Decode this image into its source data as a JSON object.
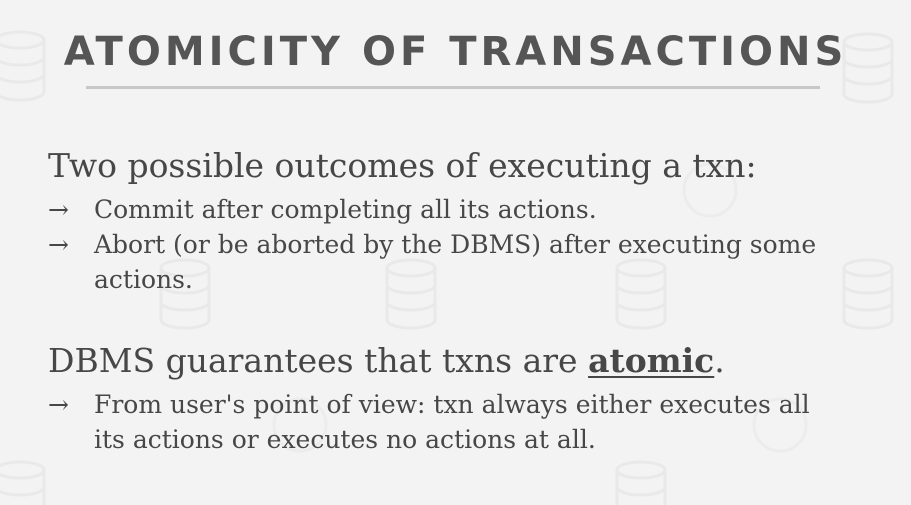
{
  "slide": {
    "title": "ATOMICITY OF TRANSACTIONS",
    "section1": {
      "heading": "Two possible outcomes of executing a txn:",
      "bullets": [
        {
          "arrow": "→",
          "text": "Commit after completing all its actions."
        },
        {
          "arrow": "→",
          "text": "Abort (or be aborted by the DBMS) after executing some actions."
        }
      ]
    },
    "section2": {
      "heading_prefix": "DBMS guarantees that txns are ",
      "heading_emphasis": "atomic",
      "heading_suffix": ".",
      "bullets": [
        {
          "arrow": "→",
          "text": "From user's point of view: txn always either executes all its actions or executes no actions at all."
        }
      ]
    }
  },
  "colors": {
    "background": "#f3f3f3",
    "title": "#555555",
    "body_text": "#474747",
    "rule": "#c7c7c7",
    "watermark_icon": "database-icon"
  }
}
